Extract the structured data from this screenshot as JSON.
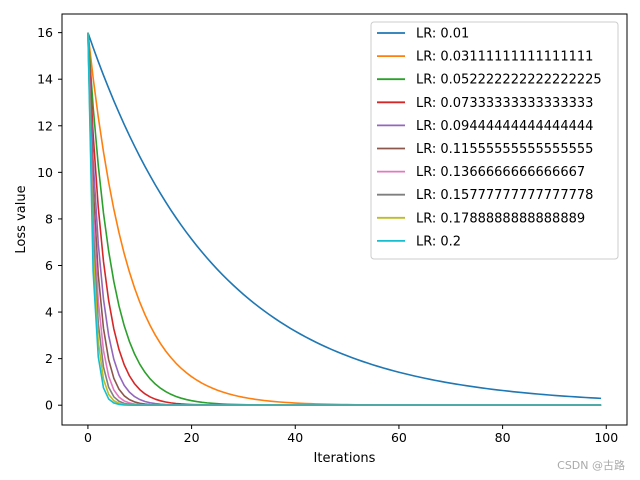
{
  "chart_data": {
    "type": "line",
    "title": "",
    "xlabel": "Iterations",
    "ylabel": "Loss value",
    "xlim": [
      -5,
      104
    ],
    "ylim": [
      -0.85,
      16.8
    ],
    "xticks": [
      0,
      20,
      40,
      60,
      80,
      100
    ],
    "yticks": [
      0,
      2,
      4,
      6,
      8,
      10,
      12,
      14,
      16
    ],
    "x_count": 100,
    "initial_value": 16,
    "legend_position": "upper right",
    "grid": false,
    "series": [
      {
        "name": "LR: 0.01",
        "lr": 0.01,
        "color": "#1f77b4"
      },
      {
        "name": "LR: 0.03111111111111111",
        "lr": 0.03111111111111111,
        "color": "#ff7f0e"
      },
      {
        "name": "LR: 0.052222222222222225",
        "lr": 0.052222222222222225,
        "color": "#2ca02c"
      },
      {
        "name": "LR: 0.07333333333333333",
        "lr": 0.07333333333333333,
        "color": "#d62728"
      },
      {
        "name": "LR: 0.09444444444444444",
        "lr": 0.09444444444444444,
        "color": "#9467bd"
      },
      {
        "name": "LR: 0.11555555555555555",
        "lr": 0.11555555555555555,
        "color": "#8c564b"
      },
      {
        "name": "LR: 0.1366666666666667",
        "lr": 0.1366666666666667,
        "color": "#e377c2"
      },
      {
        "name": "LR: 0.15777777777777778",
        "lr": 0.15777777777777777,
        "color": "#7f7f7f"
      },
      {
        "name": "LR: 0.1788888888888889",
        "lr": 0.1788888888888889,
        "color": "#bcbd22"
      },
      {
        "name": "LR: 0.2",
        "lr": 0.2,
        "color": "#17becf"
      }
    ]
  },
  "watermark": "CSDN @古路"
}
